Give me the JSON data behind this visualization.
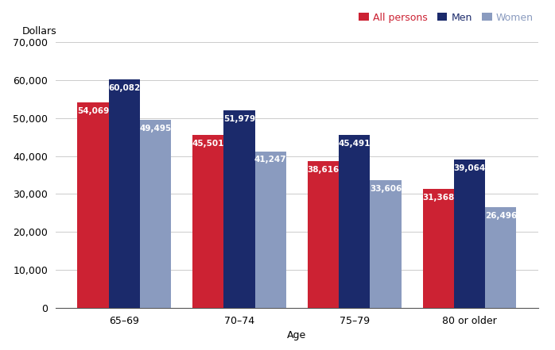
{
  "categories": [
    "65–69",
    "70–74",
    "75–79",
    "80 or older"
  ],
  "series": {
    "All persons": [
      54069,
      45501,
      38616,
      31368
    ],
    "Men": [
      60082,
      51979,
      45491,
      39064
    ],
    "Women": [
      49495,
      41247,
      33606,
      26496
    ]
  },
  "colors": {
    "All persons": "#CC2233",
    "Men": "#1B2A6B",
    "Women": "#8A9BBF"
  },
  "legend_labels": [
    "All persons",
    "Men",
    "Women"
  ],
  "xlabel": "Age",
  "ylabel": "Dollars",
  "ylim": [
    0,
    70000
  ],
  "yticks": [
    0,
    10000,
    20000,
    30000,
    40000,
    50000,
    60000,
    70000
  ],
  "bar_width": 0.27,
  "label_fontsize": 7.5,
  "axis_fontsize": 9,
  "legend_fontsize": 9,
  "background_color": "#FFFFFF"
}
